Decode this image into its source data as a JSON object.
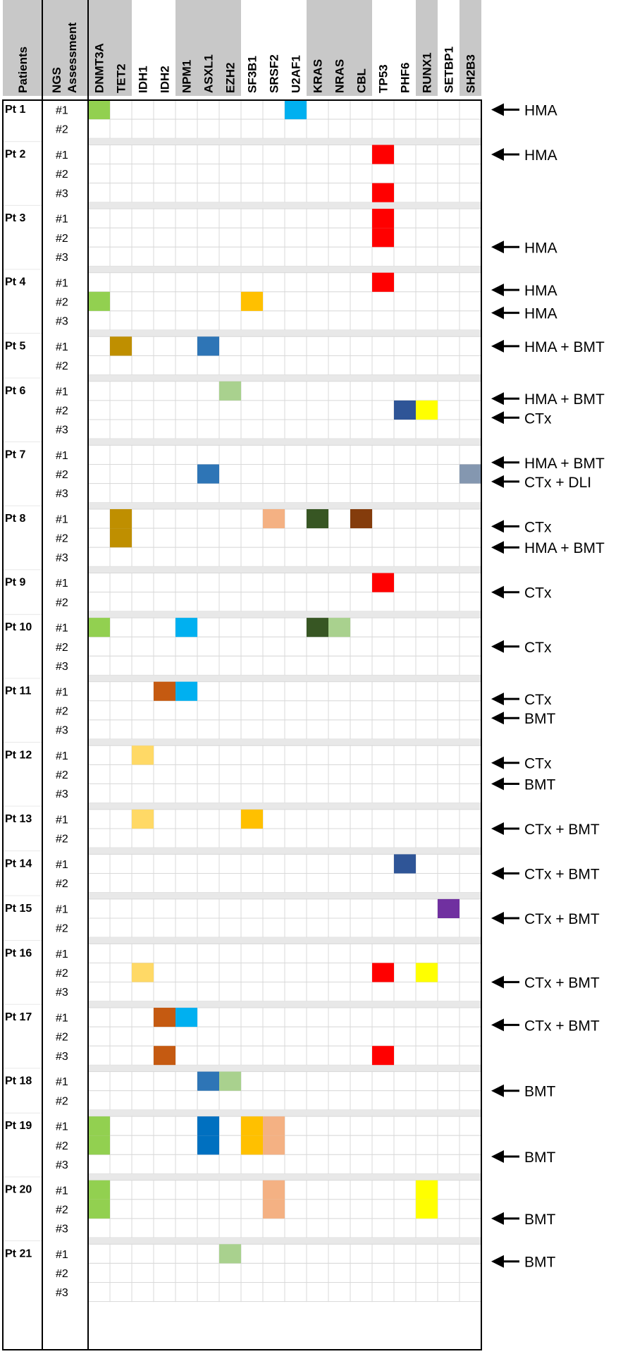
{
  "chart_data": {
    "type": "heatmap",
    "headers": {
      "patients": "Patients",
      "ngs": [
        "NGS",
        "Assessment"
      ]
    },
    "genes": [
      "DNMT3A",
      "TET2",
      "IDH1",
      "IDH2",
      "NPM1",
      "ASXL1",
      "EZH2",
      "SF3B1",
      "SRSF2",
      "U2AF1",
      "KRAS",
      "NRAS",
      "CBL",
      "TP53",
      "PHF6",
      "RUNX1",
      "SETBP1",
      "SH2B3"
    ],
    "gene_header_colors": [
      "#c8c8c8",
      "#c8c8c8",
      "#ffffff",
      "#ffffff",
      "#c8c8c8",
      "#c8c8c8",
      "#c8c8c8",
      "#ffffff",
      "#ffffff",
      "#ffffff",
      "#c8c8c8",
      "#c8c8c8",
      "#c8c8c8",
      "#ffffff",
      "#ffffff",
      "#c8c8c8",
      "#ffffff",
      "#c8c8c8"
    ],
    "patients": [
      {
        "label": "Pt 1",
        "assessments": [
          "#1",
          "#2"
        ],
        "mutations": [
          {
            "row": 0,
            "gene": "DNMT3A",
            "color": "#92d050"
          },
          {
            "row": 0,
            "gene": "U2AF1",
            "color": "#00b0f0"
          }
        ],
        "treatments": [
          {
            "row": 0,
            "text": "HMA"
          }
        ]
      },
      {
        "label": "Pt 2",
        "assessments": [
          "#1",
          "#2",
          "#3"
        ],
        "mutations": [
          {
            "row": 0,
            "gene": "TP53",
            "color": "#ff0000"
          },
          {
            "row": 2,
            "gene": "TP53",
            "color": "#ff0000"
          }
        ],
        "treatments": [
          {
            "row": 0,
            "text": "HMA"
          }
        ]
      },
      {
        "label": "Pt 3",
        "assessments": [
          "#1",
          "#2",
          "#3"
        ],
        "mutations": [
          {
            "row": 0,
            "gene": "TP53",
            "color": "#ff0000"
          },
          {
            "row": 1,
            "gene": "TP53",
            "color": "#ff0000"
          }
        ],
        "treatments": [
          {
            "row": 1.5,
            "text": "HMA"
          }
        ]
      },
      {
        "label": "Pt 4",
        "assessments": [
          "#1",
          "#2",
          "#3"
        ],
        "mutations": [
          {
            "row": 0,
            "gene": "TP53",
            "color": "#ff0000"
          },
          {
            "row": 1,
            "gene": "DNMT3A",
            "color": "#92d050"
          },
          {
            "row": 1,
            "gene": "SF3B1",
            "color": "#ffc000"
          }
        ],
        "treatments": [
          {
            "row": 0.4,
            "text": "HMA"
          },
          {
            "row": 1.6,
            "text": "HMA"
          }
        ]
      },
      {
        "label": "Pt 5",
        "assessments": [
          "#1",
          "#2"
        ],
        "mutations": [
          {
            "row": 0,
            "gene": "TET2",
            "color": "#bf8f00"
          },
          {
            "row": 0,
            "gene": "ASXL1",
            "color": "#2e75b6"
          }
        ],
        "treatments": [
          {
            "row": 0,
            "text": "HMA + BMT"
          }
        ]
      },
      {
        "label": "Pt 6",
        "assessments": [
          "#1",
          "#2",
          "#3"
        ],
        "mutations": [
          {
            "row": 0,
            "gene": "EZH2",
            "color": "#a9d18e"
          },
          {
            "row": 1,
            "gene": "PHF6",
            "color": "#2f5597"
          },
          {
            "row": 1,
            "gene": "RUNX1",
            "color": "#ffff00"
          }
        ],
        "treatments": [
          {
            "row": 0.4,
            "text": "HMA + BMT"
          },
          {
            "row": 1.4,
            "text": "CTx"
          }
        ]
      },
      {
        "label": "Pt 7",
        "assessments": [
          "#1",
          "#2",
          "#3"
        ],
        "mutations": [
          {
            "row": 1,
            "gene": "ASXL1",
            "color": "#2e75b6"
          },
          {
            "row": 1,
            "gene": "SH2B3",
            "color": "#8497b0"
          }
        ],
        "treatments": [
          {
            "row": 0.4,
            "text": "HMA + BMT"
          },
          {
            "row": 1.4,
            "text": "CTx + DLI"
          }
        ]
      },
      {
        "label": "Pt 8",
        "assessments": [
          "#1",
          "#2",
          "#3"
        ],
        "mutations": [
          {
            "row": 0,
            "gene": "TET2",
            "color": "#bf8f00"
          },
          {
            "row": 1,
            "gene": "TET2",
            "color": "#bf8f00"
          },
          {
            "row": 0,
            "gene": "SRSF2",
            "color": "#f4b183"
          },
          {
            "row": 0,
            "gene": "KRAS",
            "color": "#375623"
          },
          {
            "row": 0,
            "gene": "CBL",
            "color": "#843c0c"
          }
        ],
        "treatments": [
          {
            "row": 0.4,
            "text": "CTx"
          },
          {
            "row": 1.5,
            "text": "HMA + BMT"
          }
        ]
      },
      {
        "label": "Pt 9",
        "assessments": [
          "#1",
          "#2"
        ],
        "mutations": [
          {
            "row": 0,
            "gene": "TP53",
            "color": "#ff0000"
          }
        ],
        "treatments": [
          {
            "row": 0.5,
            "text": "CTx"
          }
        ]
      },
      {
        "label": "Pt 10",
        "assessments": [
          "#1",
          "#2",
          "#3"
        ],
        "mutations": [
          {
            "row": 0,
            "gene": "DNMT3A",
            "color": "#92d050"
          },
          {
            "row": 0,
            "gene": "NPM1",
            "color": "#00b0f0"
          },
          {
            "row": 0,
            "gene": "KRAS",
            "color": "#375623"
          },
          {
            "row": 0,
            "gene": "NRAS",
            "color": "#a9d18e"
          }
        ],
        "treatments": [
          {
            "row": 1,
            "text": "CTx"
          }
        ]
      },
      {
        "label": "Pt 11",
        "assessments": [
          "#1",
          "#2",
          "#3"
        ],
        "mutations": [
          {
            "row": 0,
            "gene": "IDH2",
            "color": "#c55a11"
          },
          {
            "row": 0,
            "gene": "NPM1",
            "color": "#00b0f0"
          }
        ],
        "treatments": [
          {
            "row": 0.4,
            "text": "CTx"
          },
          {
            "row": 1.4,
            "text": "BMT"
          }
        ]
      },
      {
        "label": "Pt 12",
        "assessments": [
          "#1",
          "#2",
          "#3"
        ],
        "mutations": [
          {
            "row": 0,
            "gene": "IDH1",
            "color": "#ffd966"
          }
        ],
        "treatments": [
          {
            "row": 0.4,
            "text": "CTx"
          },
          {
            "row": 1.5,
            "text": "BMT"
          }
        ]
      },
      {
        "label": "Pt 13",
        "assessments": [
          "#1",
          "#2"
        ],
        "mutations": [
          {
            "row": 0,
            "gene": "IDH1",
            "color": "#ffd966"
          },
          {
            "row": 0,
            "gene": "SF3B1",
            "color": "#ffc000"
          }
        ],
        "treatments": [
          {
            "row": 0.5,
            "text": "CTx + BMT"
          }
        ]
      },
      {
        "label": "Pt 14",
        "assessments": [
          "#1",
          "#2"
        ],
        "mutations": [
          {
            "row": 0,
            "gene": "PHF6",
            "color": "#2f5597"
          }
        ],
        "treatments": [
          {
            "row": 0.5,
            "text": "CTx + BMT"
          }
        ]
      },
      {
        "label": "Pt 15",
        "assessments": [
          "#1",
          "#2"
        ],
        "mutations": [
          {
            "row": 0,
            "gene": "SETBP1",
            "color": "#7030a0"
          }
        ],
        "treatments": [
          {
            "row": 0.5,
            "text": "CTx + BMT"
          }
        ]
      },
      {
        "label": "Pt 16",
        "assessments": [
          "#1",
          "#2",
          "#3"
        ],
        "mutations": [
          {
            "row": 1,
            "gene": "IDH1",
            "color": "#ffd966"
          },
          {
            "row": 1,
            "gene": "TP53",
            "color": "#ff0000"
          },
          {
            "row": 1,
            "gene": "RUNX1",
            "color": "#ffff00"
          }
        ],
        "treatments": [
          {
            "row": 1.5,
            "text": "CTx + BMT"
          }
        ]
      },
      {
        "label": "Pt 17",
        "assessments": [
          "#1",
          "#2",
          "#3"
        ],
        "mutations": [
          {
            "row": 0,
            "gene": "IDH2",
            "color": "#c55a11"
          },
          {
            "row": 0,
            "gene": "NPM1",
            "color": "#00b0f0"
          },
          {
            "row": 2,
            "gene": "IDH2",
            "color": "#c55a11"
          },
          {
            "row": 2,
            "gene": "TP53",
            "color": "#ff0000"
          }
        ],
        "treatments": [
          {
            "row": 0.4,
            "text": "CTx + BMT"
          }
        ]
      },
      {
        "label": "Pt 18",
        "assessments": [
          "#1",
          "#2"
        ],
        "mutations": [
          {
            "row": 0,
            "gene": "ASXL1",
            "color": "#2e75b6"
          },
          {
            "row": 0,
            "gene": "EZH2",
            "color": "#a9d18e"
          }
        ],
        "treatments": [
          {
            "row": 0.5,
            "text": "BMT"
          }
        ]
      },
      {
        "label": "Pt 19",
        "assessments": [
          "#1",
          "#2",
          "#3"
        ],
        "mutations": [
          {
            "row": 0,
            "gene": "DNMT3A",
            "color": "#92d050"
          },
          {
            "row": 1,
            "gene": "DNMT3A",
            "color": "#92d050"
          },
          {
            "row": 0,
            "gene": "ASXL1",
            "color": "#0070c0"
          },
          {
            "row": 1,
            "gene": "ASXL1",
            "color": "#0070c0"
          },
          {
            "row": 0,
            "gene": "SF3B1",
            "color": "#ffc000"
          },
          {
            "row": 1,
            "gene": "SF3B1",
            "color": "#ffc000"
          },
          {
            "row": 0,
            "gene": "SRSF2",
            "color": "#f4b183"
          },
          {
            "row": 1,
            "gene": "SRSF2",
            "color": "#f4b183"
          }
        ],
        "treatments": [
          {
            "row": 1.6,
            "text": "BMT"
          }
        ]
      },
      {
        "label": "Pt 20",
        "assessments": [
          "#1",
          "#2",
          "#3"
        ],
        "mutations": [
          {
            "row": 0,
            "gene": "DNMT3A",
            "color": "#92d050"
          },
          {
            "row": 1,
            "gene": "DNMT3A",
            "color": "#92d050"
          },
          {
            "row": 0,
            "gene": "SRSF2",
            "color": "#f4b183"
          },
          {
            "row": 1,
            "gene": "SRSF2",
            "color": "#f4b183"
          },
          {
            "row": 0,
            "gene": "RUNX1",
            "color": "#ffff00"
          },
          {
            "row": 1,
            "gene": "RUNX1",
            "color": "#ffff00"
          }
        ],
        "treatments": [
          {
            "row": 1.5,
            "text": "BMT"
          }
        ]
      },
      {
        "label": "Pt 21",
        "assessments": [
          "#1",
          "#2",
          "#3"
        ],
        "mutations": [
          {
            "row": 0,
            "gene": "EZH2",
            "color": "#a9d18e"
          }
        ],
        "treatments": [
          {
            "row": 0.4,
            "text": "BMT"
          }
        ]
      }
    ]
  }
}
